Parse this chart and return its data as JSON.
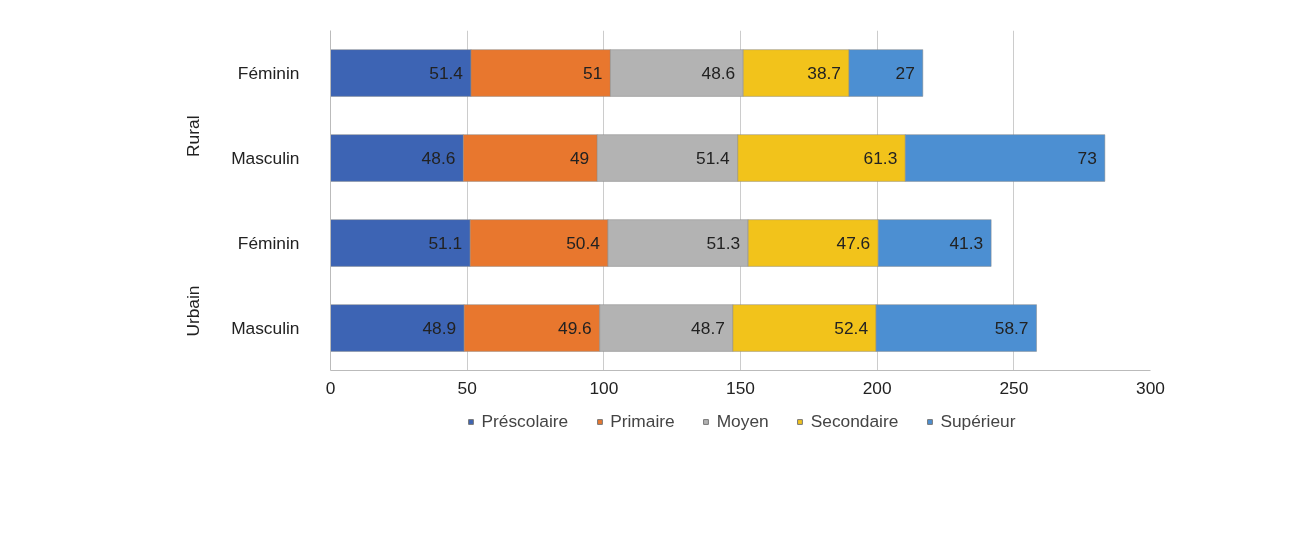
{
  "chart_data": {
    "type": "bar",
    "orientation": "horizontal",
    "stacked": true,
    "categories": [
      "Féminin",
      "Masculin",
      "Féminin",
      "Masculin"
    ],
    "annotations": [
      "Rural",
      "Urbain"
    ],
    "series": [
      {
        "name": "Préscolaire",
        "color": "#3d64b4",
        "values": [
          51.4,
          48.6,
          51.1,
          48.9
        ]
      },
      {
        "name": "Primaire",
        "color": "#e8772e",
        "values": [
          51,
          49,
          50.4,
          49.6
        ]
      },
      {
        "name": "Moyen",
        "color": "#b3b3b3",
        "values": [
          48.6,
          51.4,
          51.3,
          48.7
        ]
      },
      {
        "name": "Secondaire",
        "color": "#f2c31b",
        "values": [
          38.7,
          61.3,
          47.6,
          52.4
        ]
      },
      {
        "name": "Supérieur",
        "color": "#4c8fd2",
        "values": [
          27,
          73,
          41.3,
          58.7
        ]
      }
    ],
    "xlim": [
      0,
      300
    ],
    "xticks": [
      0,
      50,
      100,
      150,
      200,
      250,
      300
    ],
    "grid": "x",
    "legend": "bottom",
    "data_labels": true
  }
}
